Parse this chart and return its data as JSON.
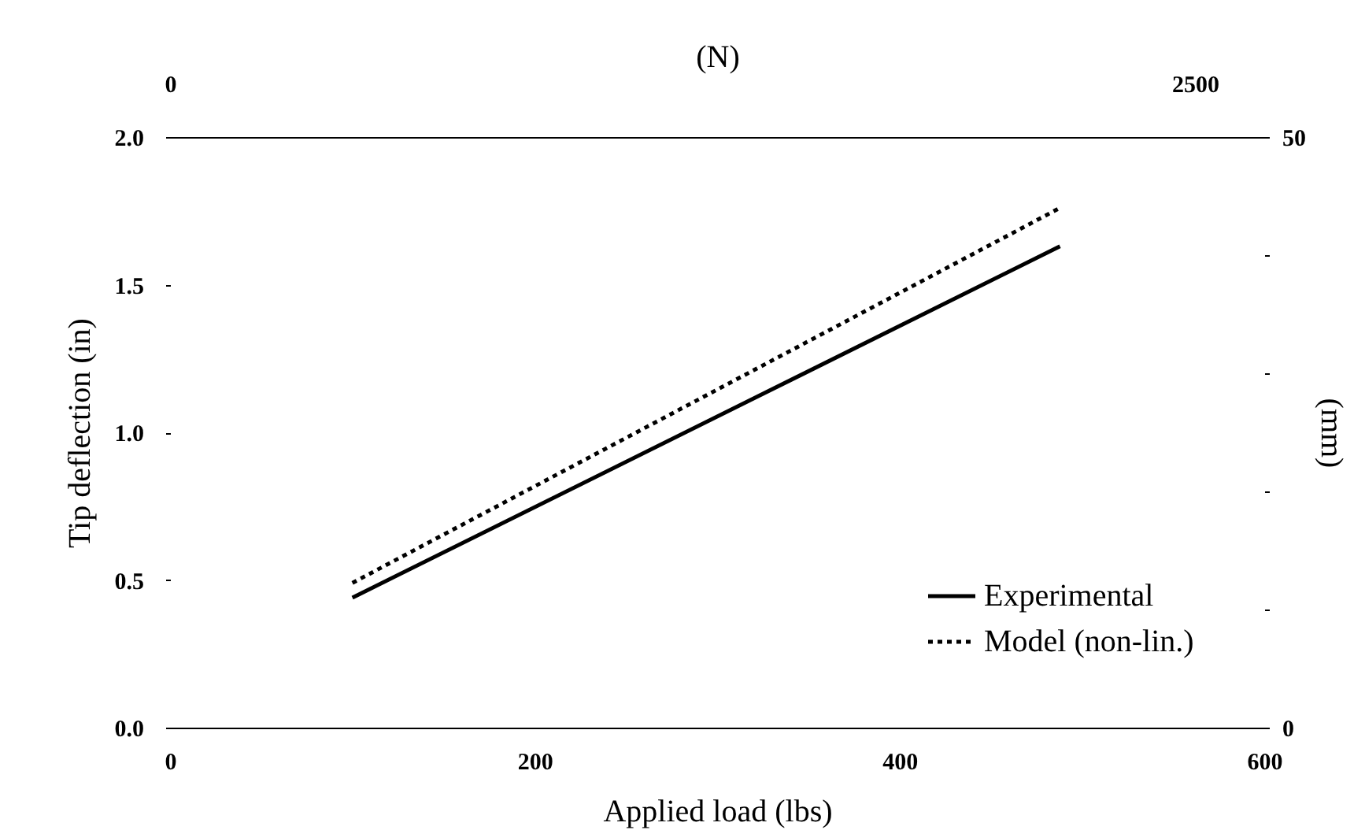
{
  "chart_data": {
    "type": "line",
    "xlabel": "Applied load (lbs)",
    "ylabel": "Tip deflection (in)",
    "x2label": "(N)",
    "y2label": "(mm)",
    "xlim": [
      0,
      600
    ],
    "xticks": [
      0,
      200,
      400,
      600
    ],
    "ylim": [
      0,
      2
    ],
    "yticks": [
      {
        "value": 0,
        "label": "0.0"
      },
      {
        "value": 0.5,
        "label": "0.5"
      },
      {
        "value": 1,
        "label": "1.0"
      },
      {
        "value": 1.5,
        "label": "1.5"
      },
      {
        "value": 2,
        "label": "2.0"
      }
    ],
    "x2lim": [
      0,
      2669
    ],
    "x2ticks": [
      0,
      2500
    ],
    "y2lim": [
      0,
      50
    ],
    "y2ticks": [
      0,
      {
        "value": 10,
        "label": null
      },
      {
        "value": 20,
        "label": null
      },
      {
        "value": 30,
        "label": null
      },
      {
        "value": 40,
        "label": null
      },
      50
    ],
    "x": [
      100,
      488
    ],
    "grid": false,
    "legend": "bottom right",
    "marker": "none",
    "series": [
      {
        "name": "Experimental",
        "color": "#000000",
        "line_style": "solid",
        "values": [
          0.44,
          1.63
        ]
      },
      {
        "name": "Model (non-lin.)",
        "color": "#000000",
        "line_style": "dotted",
        "values": [
          0.49,
          1.76
        ]
      }
    ]
  }
}
